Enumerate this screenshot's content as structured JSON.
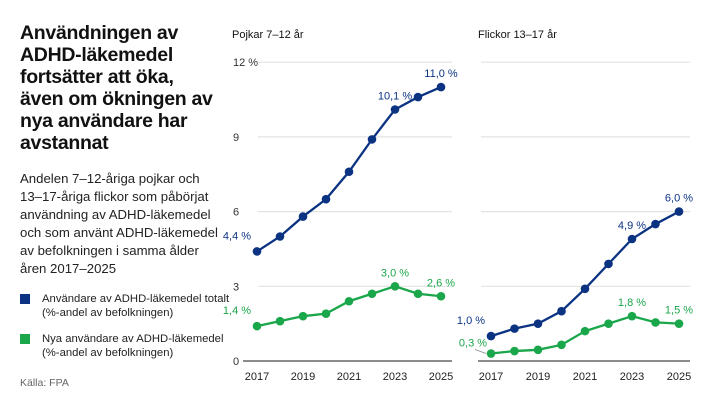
{
  "title": "Användningen av ADHD-läkemedel fortsätter att öka, även om ökningen av nya användare har avstannat",
  "subtitle": "Andelen 7–12-åriga pojkar och 13–17-åriga flickor som påbörjat användning av ADHD-läkemedel och som använt ADHD-läkemedel av befolkningen i samma ålder åren 2017–2025",
  "legend": [
    {
      "label": "Användare av ADHD-läkemedel totalt (%-andel av befolkningen)",
      "color": "#0b3382"
    },
    {
      "label": "Nya användare av ADHD-läkemedel (%-andel av befolkningen)",
      "color": "#1aa64a"
    }
  ],
  "source": "Källa: FPA",
  "chart_data": [
    {
      "type": "line",
      "title": "Pojkar 7–12 år",
      "x": [
        2017,
        2018,
        2019,
        2020,
        2021,
        2022,
        2023,
        2024,
        2025
      ],
      "x_tick_labels": [
        "2017",
        "2019",
        "2021",
        "2023",
        "2025"
      ],
      "y_tick_labels": [
        "0",
        "3",
        "6",
        "9",
        "12 %"
      ],
      "ylim": [
        0,
        12
      ],
      "grid": true,
      "series": [
        {
          "values": [
            4.4,
            5.0,
            5.8,
            6.5,
            7.6,
            8.9,
            10.1,
            10.6,
            11.0
          ],
          "color": "#0b3382",
          "labels": {
            "2017": "4,4 %",
            "2023": "10,1 %",
            "2025": "11,0 %"
          }
        },
        {
          "values": [
            1.4,
            1.6,
            1.8,
            1.9,
            2.4,
            2.7,
            3.0,
            2.7,
            2.6
          ],
          "color": "#1aa64a",
          "labels": {
            "2017": "1,4 %",
            "2023": "3,0 %",
            "2025": "2,6 %"
          }
        }
      ]
    },
    {
      "type": "line",
      "title": "Flickor 13–17 år",
      "x": [
        2017,
        2018,
        2019,
        2020,
        2021,
        2022,
        2023,
        2024,
        2025
      ],
      "x_tick_labels": [
        "2017",
        "2019",
        "2021",
        "2023",
        "2025"
      ],
      "ylim": [
        0,
        12
      ],
      "grid": true,
      "series": [
        {
          "values": [
            1.0,
            1.3,
            1.5,
            2.0,
            2.9,
            3.9,
            4.9,
            5.5,
            6.0
          ],
          "color": "#0b3382",
          "labels": {
            "2017": "1,0 %",
            "2023": "4,9 %",
            "2025": "6,0 %"
          }
        },
        {
          "values": [
            0.3,
            0.4,
            0.45,
            0.65,
            1.2,
            1.5,
            1.8,
            1.55,
            1.5
          ],
          "color": "#1aa64a",
          "labels": {
            "2017": "0,3 %",
            "2023": "1,8 %",
            "2025": "1,5 %"
          }
        }
      ]
    }
  ]
}
